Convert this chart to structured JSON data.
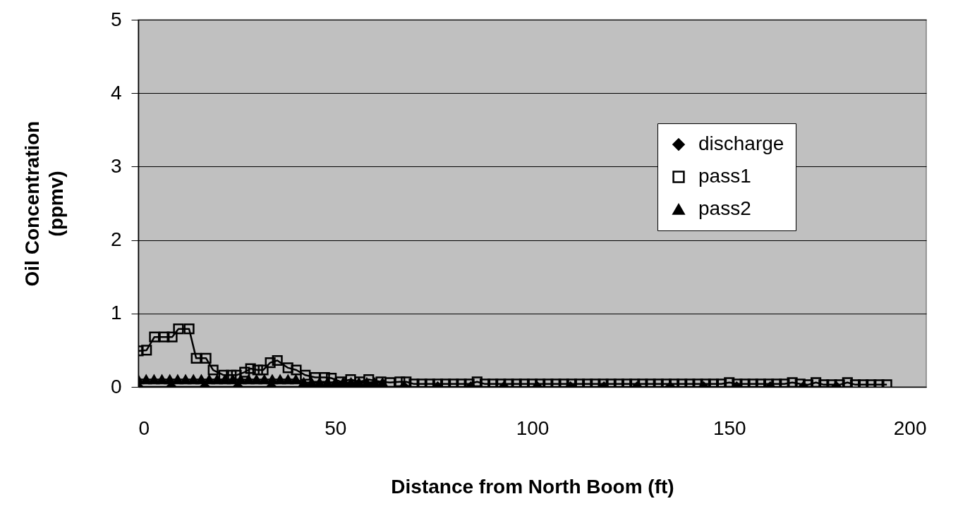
{
  "chart_data": {
    "type": "line",
    "xlabel": "Distance from North Boom (ft)",
    "ylabel": "Oil Concentration\n(ppmv)",
    "xlim": [
      0,
      200
    ],
    "xticks": [
      0,
      50,
      100,
      150,
      200
    ],
    "ylim": [
      0,
      5
    ],
    "yticks": [
      0,
      1,
      2,
      3,
      4,
      5
    ],
    "grid": "y",
    "legend": "right",
    "series": [
      {
        "name": "discharge",
        "color": "#000000",
        "marker": "diamond",
        "x": [
          0,
          8.4,
          16.9,
          25.3,
          33.8,
          42.2,
          50.6,
          59.1,
          67.5,
          76,
          84.4,
          92.8,
          101.3,
          109.7,
          118.2,
          126.6,
          135,
          143.5,
          151.9,
          160.4,
          168.8,
          177.2
        ],
        "values": [
          0,
          0,
          0,
          0,
          0,
          0,
          0,
          0,
          0,
          0,
          0,
          0,
          0,
          0,
          0,
          0,
          0,
          0,
          0,
          0,
          0,
          0
        ]
      },
      {
        "name": "pass1",
        "color": "#000000",
        "marker": "square",
        "x": [
          0,
          2.1,
          4.1,
          6.6,
          8.6,
          10.2,
          12.9,
          14.7,
          17.2,
          19,
          21.7,
          23.6,
          24.9,
          27,
          28.5,
          30.3,
          31.7,
          33.5,
          35.3,
          38,
          40.1,
          42.4,
          44.9,
          47.3,
          49,
          51.4,
          53.9,
          56.2,
          58.5,
          61.6,
          63.9,
          66.4,
          68,
          70,
          72,
          74,
          76,
          78,
          80,
          82,
          84,
          86,
          88,
          90,
          92,
          94,
          96,
          98,
          100,
          102,
          104,
          106,
          108,
          110,
          112,
          114,
          116,
          118,
          120,
          122,
          124,
          126,
          128,
          130,
          132,
          134,
          136,
          138,
          140,
          142,
          144,
          146,
          148,
          150,
          152,
          154,
          156,
          158,
          160,
          162,
          164,
          166,
          168,
          170,
          172,
          174,
          176,
          178,
          180,
          182,
          184,
          186,
          188,
          190
        ],
        "values": [
          0.49,
          0.5,
          0.68,
          0.68,
          0.68,
          0.79,
          0.79,
          0.39,
          0.39,
          0.23,
          0.16,
          0.16,
          0.16,
          0.2,
          0.25,
          0.23,
          0.23,
          0.33,
          0.36,
          0.26,
          0.23,
          0.16,
          0.13,
          0.13,
          0.12,
          0.07,
          0.1,
          0.07,
          0.1,
          0.07,
          0.06,
          0.07,
          0.07,
          0.04,
          0.04,
          0.04,
          0.04,
          0.04,
          0.04,
          0.04,
          0.04,
          0.07,
          0.04,
          0.04,
          0.04,
          0.04,
          0.04,
          0.04,
          0.04,
          0.04,
          0.04,
          0.04,
          0.04,
          0.04,
          0.04,
          0.04,
          0.04,
          0.04,
          0.04,
          0.04,
          0.04,
          0.04,
          0.04,
          0.04,
          0.04,
          0.04,
          0.04,
          0.04,
          0.04,
          0.04,
          0.04,
          0.04,
          0.04,
          0.06,
          0.04,
          0.04,
          0.04,
          0.04,
          0.04,
          0.04,
          0.04,
          0.06,
          0.04,
          0.03,
          0.06,
          0.03,
          0.03,
          0.03,
          0.06,
          0.03,
          0.03,
          0.03,
          0.03,
          0.03
        ]
      },
      {
        "name": "pass2",
        "color": "#000000",
        "marker": "triangle",
        "x": [
          0,
          2,
          4,
          6,
          8,
          10,
          12,
          14,
          16,
          18,
          20,
          22,
          24,
          26,
          28,
          30,
          32,
          34,
          36,
          38,
          40,
          42,
          44,
          46,
          48,
          50,
          52,
          54,
          56,
          58,
          60,
          62
        ],
        "values": [
          0.1,
          0.1,
          0.1,
          0.1,
          0.1,
          0.1,
          0.1,
          0.1,
          0.1,
          0.1,
          0.1,
          0.1,
          0.1,
          0.1,
          0.1,
          0.1,
          0.1,
          0.1,
          0.1,
          0.1,
          0.1,
          0.06,
          0.06,
          0.06,
          0.06,
          0.06,
          0.06,
          0.06,
          0.06,
          0.06,
          0.06,
          0.06
        ]
      }
    ]
  }
}
